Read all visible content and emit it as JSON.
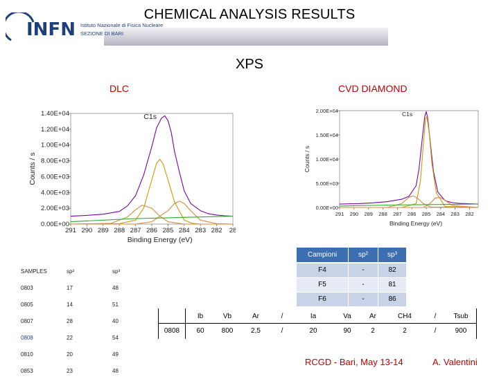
{
  "header": {
    "title": "CHEMICAL ANALYSIS RESULTS",
    "logo_text": "INFN",
    "logo_sub1": "Istituto Nazionale di Fisica Nucleare",
    "logo_sub2": "SEZIONE DI BARI",
    "subtitle": "XPS"
  },
  "labels": {
    "dlc": "DLC",
    "cvd": "CVD DIAMOND"
  },
  "chart_data": [
    {
      "type": "line",
      "title": "C1s",
      "xlabel": "Binding Energy (eV)",
      "ylabel": "Counts / s",
      "x_ticks": [
        "291",
        "290",
        "289",
        "288",
        "287",
        "286",
        "285",
        "284",
        "283",
        "282",
        "28"
      ],
      "y_ticks": [
        "0.00E+00",
        "2.00E+03",
        "4.00E+03",
        "6.00E+03",
        "8.00E+03",
        "1.00E+04",
        "1.20E+04",
        "1.40E+04"
      ],
      "xlim": [
        291,
        281
      ],
      "ylim": [
        0,
        14000
      ],
      "series": [
        {
          "color": "#7a00a8",
          "x": [
            291,
            290,
            289,
            288,
            287.5,
            287,
            286.5,
            286,
            285.7,
            285.4,
            285.2,
            285,
            284.8,
            284.6,
            284.3,
            284,
            283.6,
            283,
            282.5,
            282,
            281.5,
            281
          ],
          "y": [
            1000,
            1100,
            1250,
            1600,
            2300,
            3600,
            6200,
            9800,
            12200,
            13400,
            13700,
            13100,
            11600,
            9200,
            6600,
            4200,
            2600,
            1700,
            1300,
            1150,
            1050,
            1000
          ]
        },
        {
          "color": "#c99a00",
          "x": [
            291,
            288,
            287,
            286.5,
            286,
            285.7,
            285.5,
            285.3,
            285,
            284.6,
            284,
            283.5,
            283,
            281
          ],
          "y": [
            0,
            50,
            500,
            2000,
            5600,
            7700,
            8200,
            7600,
            5600,
            2800,
            500,
            100,
            0,
            0
          ]
        },
        {
          "color": "#d88a3a",
          "x": [
            291,
            287,
            286,
            285,
            284.6,
            284.3,
            284,
            283.6,
            283,
            282,
            281
          ],
          "y": [
            0,
            0,
            300,
            1700,
            2600,
            2900,
            2600,
            1700,
            500,
            50,
            0
          ]
        },
        {
          "color": "#d88a3a",
          "x": [
            291,
            288.5,
            287.5,
            287,
            286.6,
            286,
            285.5,
            285,
            284,
            281
          ],
          "y": [
            0,
            100,
            900,
            1800,
            2400,
            2000,
            1000,
            300,
            0,
            0
          ]
        },
        {
          "color": "#2aaa2a",
          "x": [
            291,
            289,
            287,
            285,
            283,
            281
          ],
          "y": [
            300,
            500,
            700,
            800,
            900,
            1000
          ]
        }
      ]
    },
    {
      "type": "line",
      "title": "C1s",
      "xlabel": "Binding Energy (eV)",
      "ylabel": "Counts / s",
      "x_ticks": [
        "291",
        "290",
        "289",
        "288",
        "287",
        "286",
        "285",
        "284",
        "283",
        "282"
      ],
      "y_ticks": [
        "0.00E+00",
        "5.00E+03",
        "1.00E+04",
        "1.50E+04",
        "2.00E+04"
      ],
      "xlim": [
        291.3,
        281.7
      ],
      "ylim": [
        0,
        20000
      ],
      "series": [
        {
          "color": "#7a00a8",
          "x": [
            291.3,
            290,
            289,
            288,
            287,
            286.5,
            286,
            285.8,
            285.6,
            285.4,
            285.3,
            285.2,
            285,
            284.8,
            284.5,
            284,
            283.5,
            283,
            282,
            281.7
          ],
          "y": [
            700,
            800,
            950,
            1200,
            1700,
            2300,
            4500,
            8000,
            13500,
            18800,
            19800,
            18500,
            13000,
            7500,
            3200,
            1400,
            1000,
            850,
            750,
            700
          ]
        },
        {
          "color": "#c99a00",
          "x": [
            291.3,
            287,
            286,
            285.7,
            285.5,
            285.35,
            285.25,
            285.1,
            284.9,
            284.6,
            284,
            281.7
          ],
          "y": [
            0,
            0,
            800,
            5500,
            13000,
            18300,
            18800,
            15500,
            9000,
            3000,
            200,
            0
          ]
        },
        {
          "color": "#d88a3a",
          "x": [
            291.3,
            288,
            287,
            286.5,
            286.2,
            285.9,
            285.5,
            285,
            281.7
          ],
          "y": [
            0,
            0,
            800,
            2100,
            2400,
            1900,
            800,
            100,
            0
          ]
        },
        {
          "color": "#d88a3a",
          "x": [
            291.3,
            285.5,
            285,
            284.7,
            284.4,
            284,
            283.5,
            281.7
          ],
          "y": [
            0,
            0,
            900,
            1900,
            2100,
            1500,
            400,
            0
          ]
        },
        {
          "color": "#2aaa2a",
          "x": [
            291.3,
            288,
            285,
            282,
            281.7
          ],
          "y": [
            300,
            500,
            600,
            700,
            700
          ]
        }
      ]
    }
  ],
  "samples_table": {
    "headers": [
      "SAMPLES",
      "sp²",
      "sp³"
    ],
    "rows": [
      [
        "0803",
        "17",
        "48"
      ],
      [
        "0805",
        "14",
        "51"
      ],
      [
        "0807",
        "28",
        "40"
      ],
      [
        "0808",
        "22",
        "54"
      ],
      [
        "0810",
        "20",
        "49"
      ],
      [
        "0853",
        "23",
        "48"
      ]
    ]
  },
  "cvd_table": {
    "headers": [
      "Campioni",
      "sp²",
      "sp³"
    ],
    "rows": [
      [
        "F4",
        "-",
        "82"
      ],
      [
        "F5",
        "-",
        "81"
      ],
      [
        "F6",
        "-",
        "86"
      ]
    ]
  },
  "params_table": {
    "sample": "0808",
    "headers": [
      "Ib",
      "Vb",
      "Ar",
      "/",
      "Ia",
      "Va",
      "Ar",
      "CH4",
      "/",
      "Tsub"
    ],
    "values": [
      "60",
      "800",
      "2,5",
      "/",
      "20",
      "90",
      "2",
      "2",
      "/",
      "900"
    ]
  },
  "footer": {
    "left": "RCGD  - Bari, May 13-14",
    "right": "A. Valentini"
  }
}
